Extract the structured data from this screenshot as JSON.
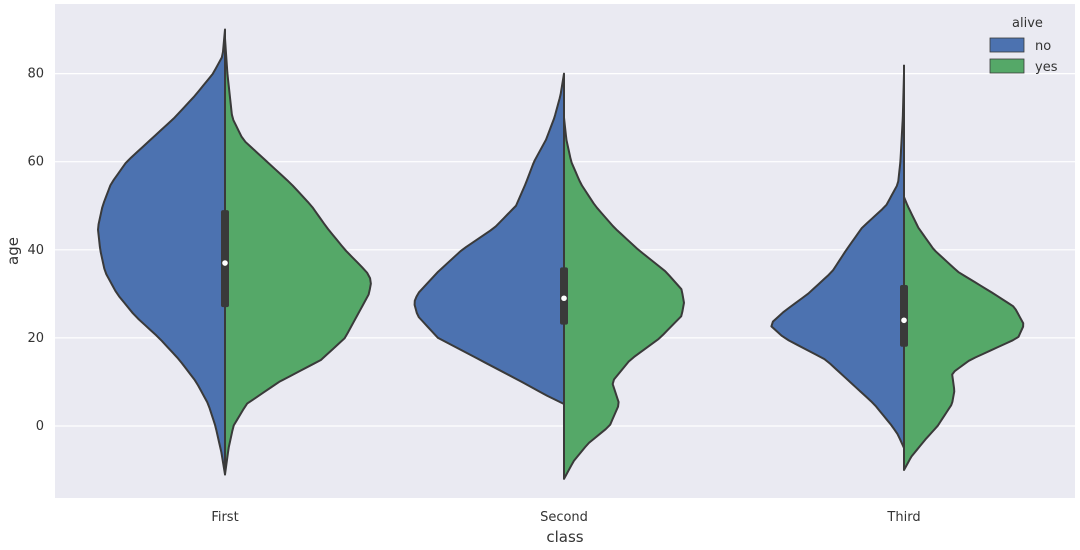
{
  "chart_data": {
    "type": "violin",
    "split": true,
    "xlabel": "class",
    "ylabel": "age",
    "categories": [
      "First",
      "Second",
      "Third"
    ],
    "ylim": [
      -17,
      95
    ],
    "yticks": [
      0,
      20,
      40,
      60,
      80
    ],
    "grid": true,
    "legend": {
      "title": "alive",
      "position": "top-right"
    },
    "series": [
      {
        "name": "no",
        "color": "#4c72b0"
      },
      {
        "name": "yes",
        "color": "#55a868"
      }
    ],
    "groups": [
      {
        "category": "First",
        "range": [
          -11,
          90
        ],
        "median": 37,
        "quartiles": [
          27,
          49
        ],
        "no_profile": [
          [
            -11,
            0
          ],
          [
            -6,
            0.03
          ],
          [
            0,
            0.08
          ],
          [
            5,
            0.14
          ],
          [
            10,
            0.24
          ],
          [
            15,
            0.38
          ],
          [
            20,
            0.55
          ],
          [
            25,
            0.75
          ],
          [
            30,
            0.9
          ],
          [
            35,
            1.0
          ],
          [
            40,
            1.04
          ],
          [
            45,
            1.06
          ],
          [
            50,
            1.02
          ],
          [
            55,
            0.95
          ],
          [
            60,
            0.82
          ],
          [
            65,
            0.62
          ],
          [
            70,
            0.42
          ],
          [
            75,
            0.25
          ],
          [
            80,
            0.1
          ],
          [
            83,
            0.04
          ],
          [
            84,
            0.02
          ],
          [
            90,
            0
          ]
        ],
        "yes_profile": [
          [
            -11,
            0
          ],
          [
            -5,
            0.03
          ],
          [
            0,
            0.07
          ],
          [
            5,
            0.18
          ],
          [
            10,
            0.45
          ],
          [
            15,
            0.8
          ],
          [
            20,
            1.0
          ],
          [
            25,
            1.1
          ],
          [
            30,
            1.2
          ],
          [
            33,
            1.22
          ],
          [
            35,
            1.18
          ],
          [
            40,
            1.0
          ],
          [
            45,
            0.85
          ],
          [
            50,
            0.72
          ],
          [
            55,
            0.55
          ],
          [
            60,
            0.35
          ],
          [
            65,
            0.15
          ],
          [
            70,
            0.06
          ],
          [
            80,
            0.02
          ],
          [
            88,
            0
          ]
        ]
      },
      {
        "category": "Second",
        "range": [
          -12,
          80
        ],
        "median": 29,
        "quartiles": [
          23,
          36
        ],
        "no_profile": [
          [
            5,
            0
          ],
          [
            7,
            0.15
          ],
          [
            10,
            0.35
          ],
          [
            15,
            0.7
          ],
          [
            20,
            1.05
          ],
          [
            25,
            1.22
          ],
          [
            28,
            1.25
          ],
          [
            30,
            1.22
          ],
          [
            35,
            1.05
          ],
          [
            40,
            0.85
          ],
          [
            45,
            0.58
          ],
          [
            50,
            0.4
          ],
          [
            55,
            0.32
          ],
          [
            60,
            0.25
          ],
          [
            65,
            0.15
          ],
          [
            70,
            0.08
          ],
          [
            75,
            0.03
          ],
          [
            80,
            0
          ]
        ],
        "yes_profile": [
          [
            -12,
            0
          ],
          [
            -8,
            0.08
          ],
          [
            -4,
            0.2
          ],
          [
            0,
            0.38
          ],
          [
            5,
            0.46
          ],
          [
            10,
            0.4
          ],
          [
            15,
            0.55
          ],
          [
            20,
            0.8
          ],
          [
            25,
            0.98
          ],
          [
            28,
            1.0
          ],
          [
            31,
            0.98
          ],
          [
            35,
            0.85
          ],
          [
            40,
            0.62
          ],
          [
            45,
            0.42
          ],
          [
            50,
            0.26
          ],
          [
            55,
            0.14
          ],
          [
            60,
            0.06
          ],
          [
            65,
            0.02
          ],
          [
            70,
            0
          ]
        ]
      },
      {
        "category": "Third",
        "range": [
          -10,
          82
        ],
        "median": 24,
        "quartiles": [
          18,
          32
        ],
        "no_profile": [
          [
            -5,
            0
          ],
          [
            -2,
            0.05
          ],
          [
            0,
            0.1
          ],
          [
            5,
            0.25
          ],
          [
            10,
            0.45
          ],
          [
            15,
            0.65
          ],
          [
            20,
            1.0
          ],
          [
            23,
            1.12
          ],
          [
            26,
            1.0
          ],
          [
            30,
            0.8
          ],
          [
            35,
            0.6
          ],
          [
            40,
            0.48
          ],
          [
            45,
            0.35
          ],
          [
            50,
            0.15
          ],
          [
            55,
            0.05
          ],
          [
            60,
            0.03
          ],
          [
            65,
            0.02
          ],
          [
            70,
            0.01
          ],
          [
            80,
            0
          ]
        ],
        "yes_profile": [
          [
            -10,
            0
          ],
          [
            -7,
            0.06
          ],
          [
            -3,
            0.18
          ],
          [
            0,
            0.28
          ],
          [
            5,
            0.4
          ],
          [
            8,
            0.42
          ],
          [
            12,
            0.4
          ],
          [
            15,
            0.55
          ],
          [
            20,
            0.95
          ],
          [
            23,
            1.0
          ],
          [
            27,
            0.92
          ],
          [
            30,
            0.75
          ],
          [
            35,
            0.45
          ],
          [
            40,
            0.25
          ],
          [
            45,
            0.12
          ],
          [
            50,
            0.03
          ],
          [
            52,
            0
          ]
        ]
      }
    ]
  }
}
